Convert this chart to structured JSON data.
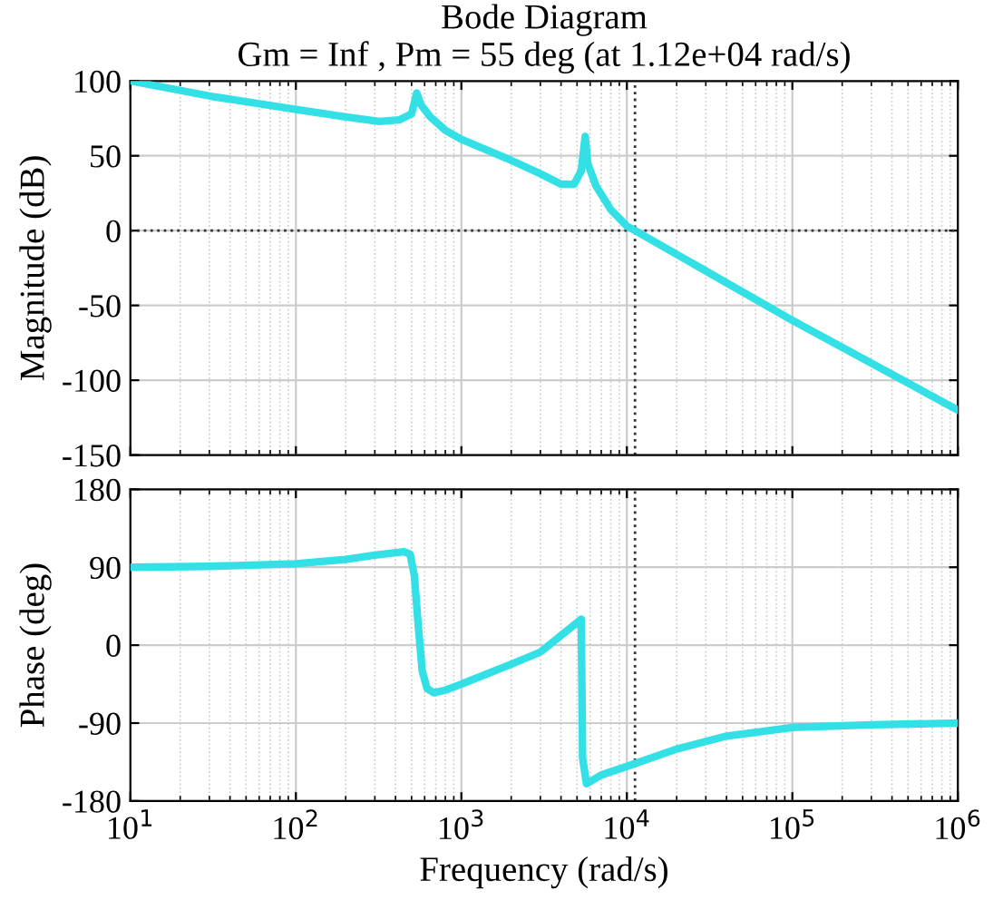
{
  "chart_data": [
    {
      "type": "line",
      "title": "Bode Diagram\nGm = Inf , Pm = 55 deg (at 1.12e+04 rad/s)",
      "ylabel": "Magnitude (dB)",
      "log": "x",
      "grid": true,
      "tick_labels": "y",
      "xlim": [
        10,
        1000000
      ],
      "xticks": [
        {
          "value": 10,
          "label": null
        },
        {
          "value": 100,
          "label": null
        },
        {
          "value": 1000,
          "label": null
        },
        {
          "value": 10000,
          "label": null
        },
        {
          "value": 100000,
          "label": null
        },
        {
          "value": 1000000,
          "label": null
        }
      ],
      "ylim": [
        -150,
        100
      ],
      "yticks": [
        -150,
        -100,
        -50,
        0,
        50,
        100
      ],
      "ref_lines": [
        {
          "axis": "y",
          "value": 0,
          "color": "#333333",
          "line_style": "dotted"
        },
        {
          "axis": "x",
          "value": 11200,
          "color": "#333333",
          "line_style": "dotted"
        }
      ],
      "series": [
        {
          "color": "#33e0e6",
          "x": [
            10,
            30,
            100,
            200,
            320,
            420,
            500,
            537,
            570,
            650,
            800,
            1000,
            2000,
            3000,
            4000,
            4800,
            5300,
            5600,
            5800,
            6500,
            8000,
            10000,
            11200,
            100000,
            1000000
          ],
          "values": [
            100,
            90,
            81,
            76,
            73,
            74,
            78,
            92,
            84,
            76,
            67,
            61,
            47,
            38,
            31,
            31,
            40,
            63,
            45,
            30,
            14,
            3,
            0,
            -60,
            -120
          ]
        }
      ]
    },
    {
      "type": "line",
      "xlabel": "Frequency (rad/s)",
      "ylabel": "Phase (deg)",
      "log": "x",
      "grid": true,
      "xlim": [
        10,
        1000000
      ],
      "xticks": [
        {
          "value": 10,
          "label": "10$^{1}$"
        },
        {
          "value": 100,
          "label": "10$^{2}$"
        },
        {
          "value": 1000,
          "label": "10$^{3}$"
        },
        {
          "value": 10000,
          "label": "10$^{4}$"
        },
        {
          "value": 100000,
          "label": "10$^{5}$"
        },
        {
          "value": 1000000,
          "label": "10$^{6}$"
        }
      ],
      "ylim": [
        -180,
        180
      ],
      "yticks": [
        -180,
        -90,
        0,
        90,
        180
      ],
      "ref_lines": [
        {
          "axis": "x",
          "value": 11200,
          "color": "#333333",
          "line_style": "dotted"
        }
      ],
      "series": [
        {
          "color": "#33e0e6",
          "x": [
            10,
            30,
            100,
            200,
            300,
            450,
            490,
            520,
            550,
            580,
            620,
            680,
            800,
            1000,
            2000,
            3000,
            5300,
            5400,
            5700,
            7000,
            10000,
            20000,
            40000,
            100000,
            300000,
            1000000
          ],
          "values": [
            90,
            91,
            94,
            99,
            104,
            108,
            105,
            80,
            20,
            -30,
            -50,
            -55,
            -52,
            -45,
            -22,
            -8,
            30,
            -130,
            -160,
            -150,
            -140,
            -120,
            -105,
            -95,
            -92,
            -90
          ]
        }
      ]
    }
  ]
}
